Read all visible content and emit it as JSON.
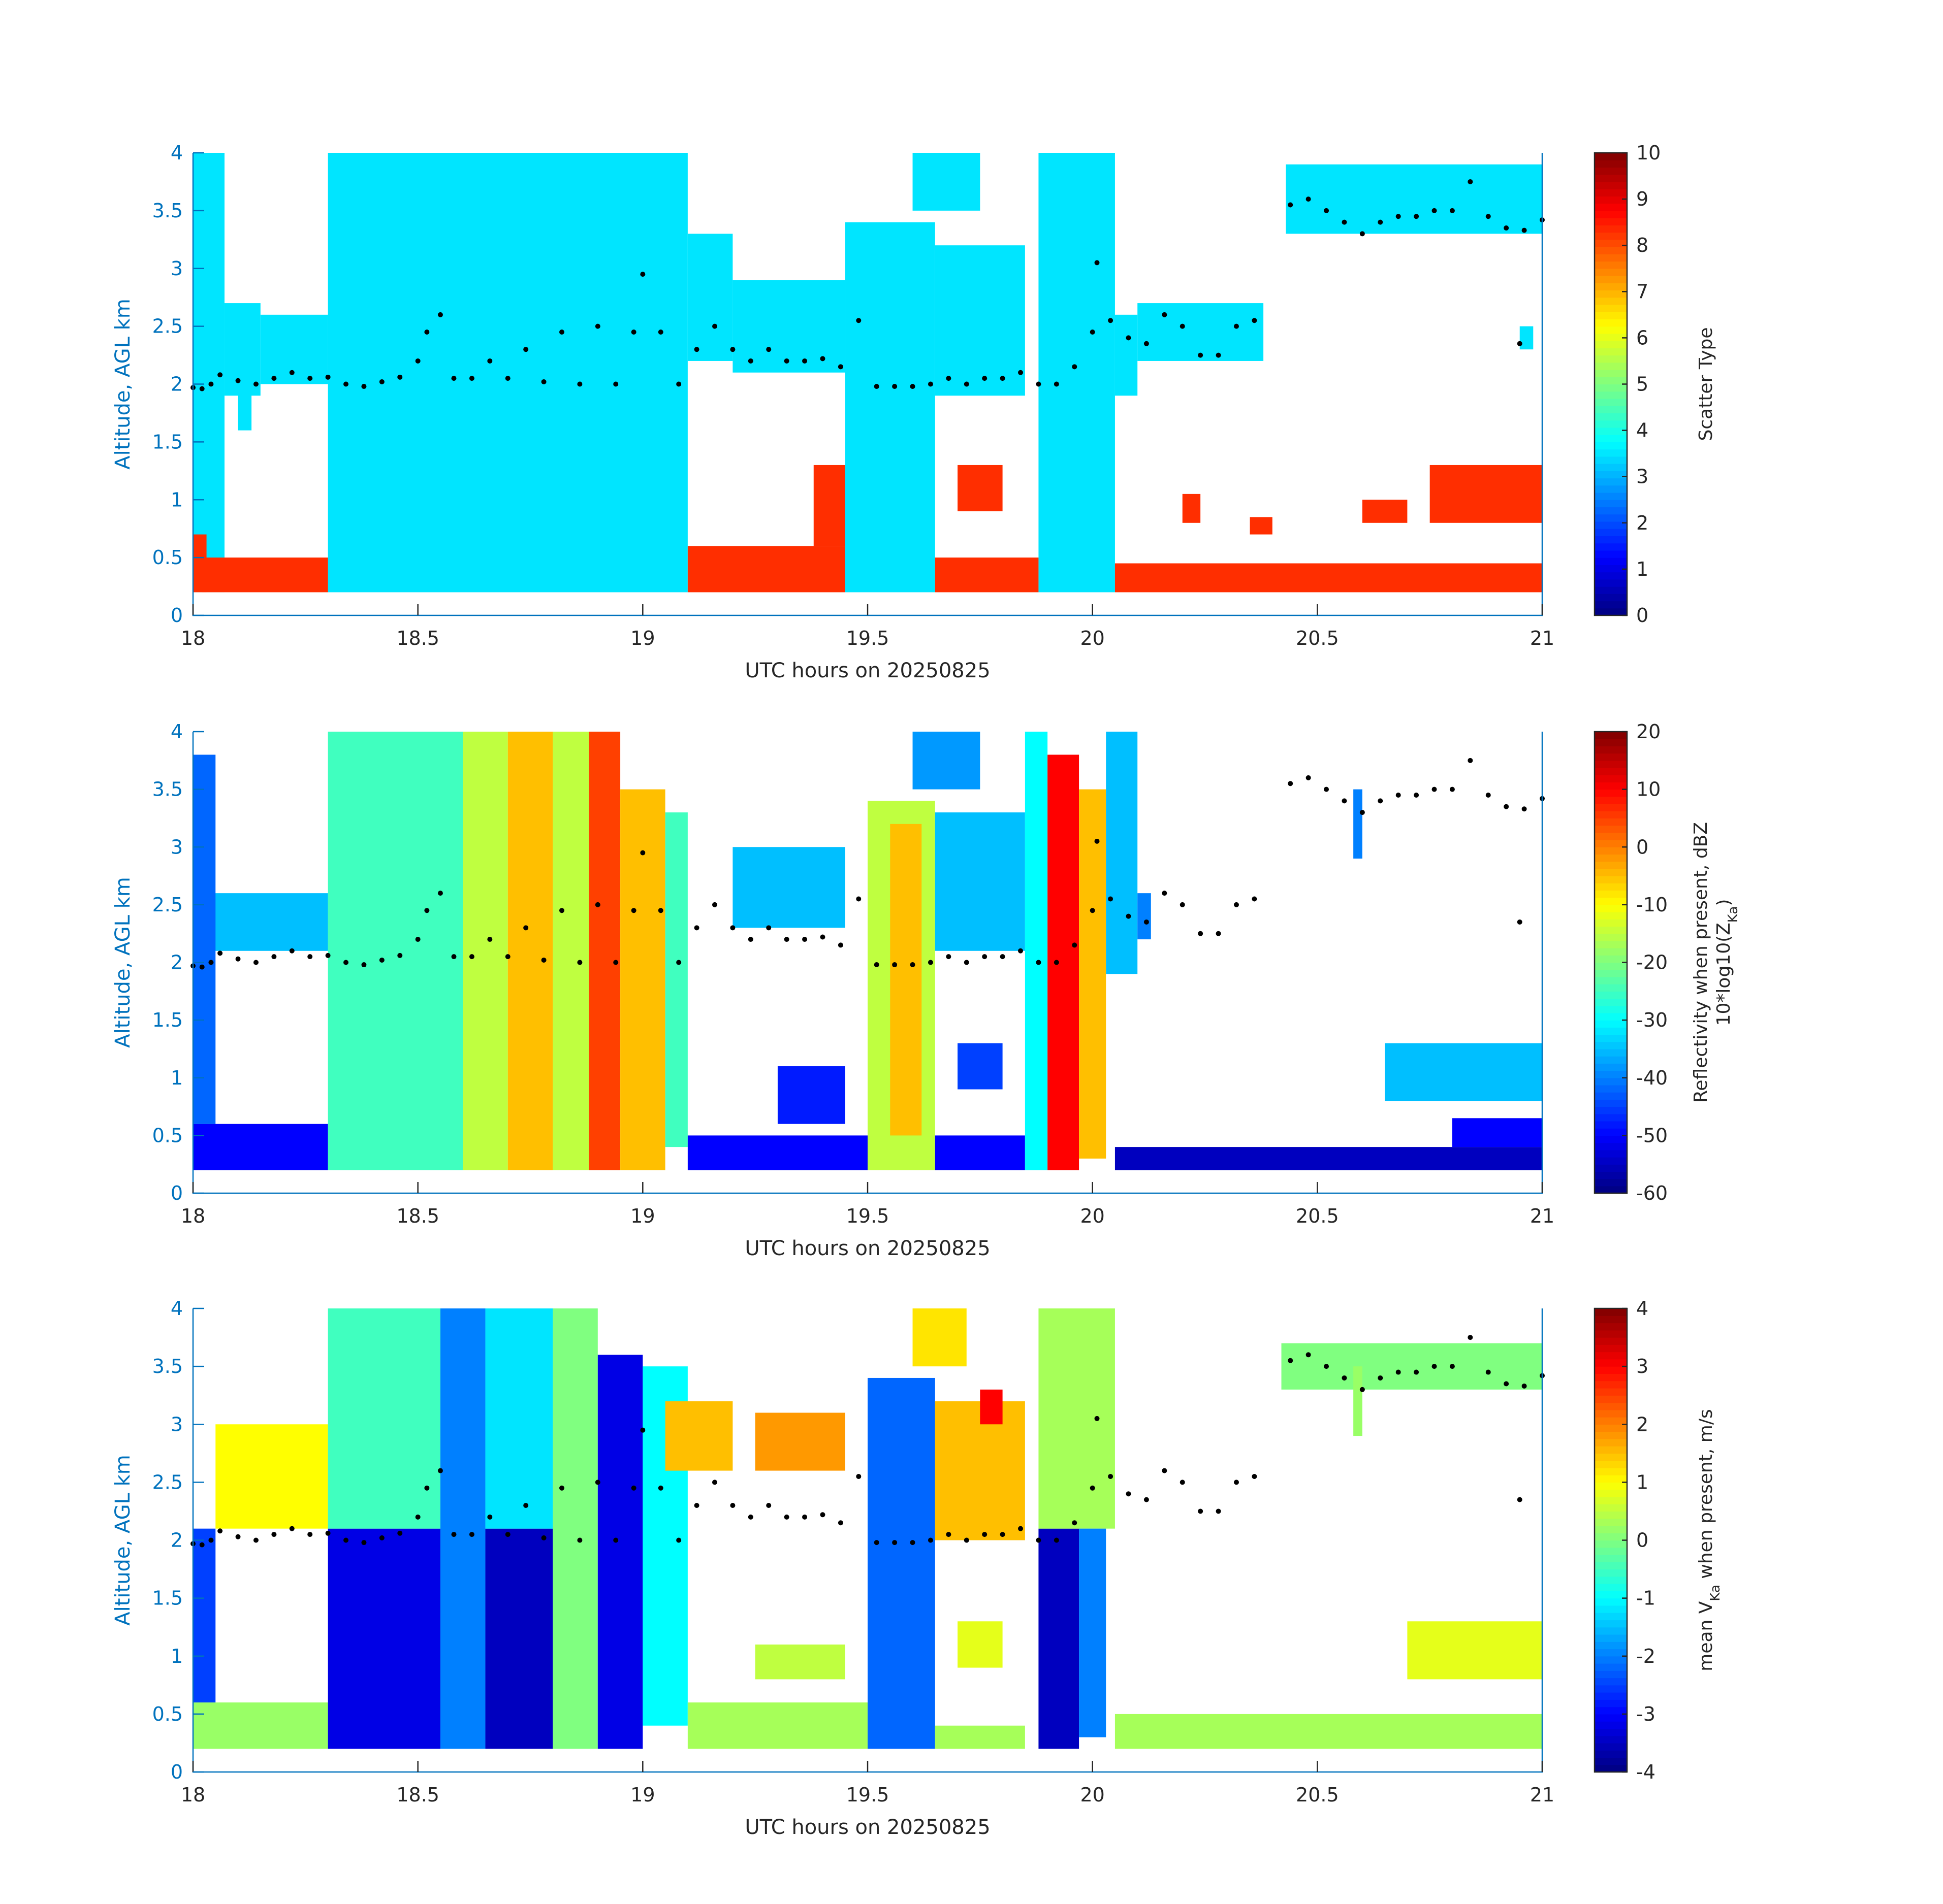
{
  "colors": {
    "axis_label": "#0072bd",
    "text": "#262626",
    "dots": "#000000",
    "colormap": "jet"
  },
  "chart_data": [
    {
      "type": "heatmap",
      "xlabel": "UTC hours on 20250825",
      "ylabel": "Altitude, AGL km",
      "xlim": [
        18,
        21
      ],
      "ylim": [
        0,
        4
      ],
      "xticks": [
        "18",
        "18.5",
        "19",
        "19.5",
        "20",
        "20.5",
        "21"
      ],
      "yticks": [
        "0",
        "0.5",
        "1",
        "1.5",
        "2",
        "2.5",
        "3",
        "3.5",
        "4"
      ],
      "colorbar": {
        "label": "Scatter Type",
        "label_sub": "",
        "label_line2": "",
        "clim": [
          0,
          10
        ],
        "ticks": [
          "0",
          "1",
          "2",
          "3",
          "4",
          "5",
          "6",
          "7",
          "8",
          "9",
          "10"
        ]
      },
      "regions_t0_t1_z0_z1_value": [
        [
          18.0,
          18.07,
          0.2,
          4.0,
          3.5
        ],
        [
          18.07,
          18.15,
          1.9,
          2.7,
          3.5
        ],
        [
          18.15,
          18.3,
          2.0,
          2.6,
          3.5
        ],
        [
          18.1,
          18.13,
          1.6,
          2.1,
          3.5
        ],
        [
          18.3,
          19.1,
          0.2,
          4.0,
          3.5
        ],
        [
          19.1,
          19.2,
          2.2,
          3.3,
          3.5
        ],
        [
          19.2,
          19.45,
          2.1,
          2.9,
          3.5
        ],
        [
          19.45,
          19.65,
          0.2,
          3.4,
          3.5
        ],
        [
          19.65,
          19.85,
          1.9,
          3.2,
          3.5
        ],
        [
          19.6,
          19.75,
          3.5,
          4.0,
          3.5
        ],
        [
          19.88,
          20.05,
          0.2,
          4.0,
          3.5
        ],
        [
          20.05,
          20.1,
          1.9,
          2.6,
          3.5
        ],
        [
          20.1,
          20.38,
          2.2,
          2.7,
          3.5
        ],
        [
          20.43,
          21.0,
          3.3,
          3.9,
          3.5
        ],
        [
          20.95,
          20.98,
          2.3,
          2.5,
          3.5
        ],
        [
          18.02,
          18.3,
          0.2,
          0.5,
          8.3
        ],
        [
          18.0,
          18.03,
          0.2,
          0.7,
          8.3
        ],
        [
          19.1,
          19.45,
          0.2,
          0.6,
          8.3
        ],
        [
          19.38,
          19.45,
          0.6,
          1.3,
          8.3
        ],
        [
          19.65,
          19.88,
          0.2,
          0.5,
          8.3
        ],
        [
          19.7,
          19.8,
          0.9,
          1.3,
          8.3
        ],
        [
          20.05,
          21.0,
          0.2,
          0.45,
          8.3
        ],
        [
          20.6,
          20.7,
          0.8,
          1.0,
          8.3
        ],
        [
          20.75,
          21.0,
          0.8,
          1.3,
          8.3
        ],
        [
          20.2,
          20.24,
          0.8,
          1.05,
          8.3
        ],
        [
          20.35,
          20.4,
          0.7,
          0.85,
          8.3
        ]
      ]
    },
    {
      "type": "heatmap",
      "xlabel": "UTC hours on 20250825",
      "ylabel": "Altitude, AGL km",
      "xlim": [
        18,
        21
      ],
      "ylim": [
        0,
        4
      ],
      "xticks": [
        "18",
        "18.5",
        "19",
        "19.5",
        "20",
        "20.5",
        "21"
      ],
      "yticks": [
        "0",
        "0.5",
        "1",
        "1.5",
        "2",
        "2.5",
        "3",
        "3.5",
        "4"
      ],
      "colorbar": {
        "label": "Reflectivity when present, dBZ",
        "label_line2": "10*log10(Z",
        "label_sub": "Ka",
        "label_end": ")",
        "clim": [
          -60,
          20
        ],
        "ticks": [
          "-60",
          "-50",
          "-40",
          "-30",
          "-20",
          "-10",
          "0",
          "10",
          "20"
        ]
      },
      "regions_t0_t1_z0_z1_value": [
        [
          18.0,
          18.3,
          0.2,
          0.6,
          -50
        ],
        [
          18.0,
          18.3,
          2.1,
          2.6,
          -35
        ],
        [
          18.0,
          18.05,
          0.6,
          3.8,
          -42
        ],
        [
          18.3,
          18.6,
          0.2,
          4.0,
          -25
        ],
        [
          18.6,
          18.7,
          0.2,
          4.0,
          -15
        ],
        [
          18.7,
          18.8,
          0.2,
          4.0,
          -5
        ],
        [
          18.8,
          18.88,
          0.2,
          4.0,
          -15
        ],
        [
          18.88,
          18.95,
          0.2,
          4.0,
          5
        ],
        [
          18.95,
          19.05,
          0.2,
          3.5,
          -5
        ],
        [
          19.05,
          19.1,
          0.4,
          3.3,
          -25
        ],
        [
          19.1,
          19.5,
          0.2,
          0.5,
          -50
        ],
        [
          19.2,
          19.45,
          2.3,
          3.0,
          -35
        ],
        [
          19.3,
          19.45,
          0.6,
          1.1,
          -48
        ],
        [
          19.5,
          19.65,
          0.2,
          3.4,
          -15
        ],
        [
          19.55,
          19.62,
          0.5,
          3.2,
          -5
        ],
        [
          19.65,
          19.85,
          0.2,
          0.5,
          -50
        ],
        [
          19.65,
          19.85,
          2.1,
          3.3,
          -35
        ],
        [
          19.6,
          19.75,
          3.5,
          4.0,
          -38
        ],
        [
          19.7,
          19.8,
          0.9,
          1.3,
          -45
        ],
        [
          19.85,
          19.9,
          0.2,
          4.0,
          -30
        ],
        [
          19.9,
          19.97,
          0.2,
          3.8,
          10
        ],
        [
          19.97,
          20.03,
          0.3,
          3.5,
          -5
        ],
        [
          20.03,
          20.1,
          1.9,
          4.0,
          -35
        ],
        [
          20.05,
          21.0,
          0.2,
          0.4,
          -55
        ],
        [
          20.1,
          20.13,
          2.2,
          2.6,
          -40
        ],
        [
          20.58,
          20.6,
          2.9,
          3.5,
          -40
        ],
        [
          20.65,
          21.0,
          0.8,
          1.3,
          -35
        ],
        [
          20.8,
          21.0,
          0.4,
          0.65,
          -50
        ]
      ]
    },
    {
      "type": "heatmap",
      "xlabel": "UTC hours on 20250825",
      "ylabel": "Altitude, AGL km",
      "xlim": [
        18,
        21
      ],
      "ylim": [
        0,
        4
      ],
      "xticks": [
        "18",
        "18.5",
        "19",
        "19.5",
        "20",
        "20.5",
        "21"
      ],
      "yticks": [
        "0",
        "0.5",
        "1",
        "1.5",
        "2",
        "2.5",
        "3",
        "3.5",
        "4"
      ],
      "colorbar": {
        "label": "mean V",
        "label_sub": "Ka",
        "label_end": " when present, m/s",
        "label_line2": "",
        "clim": [
          -4,
          4
        ],
        "ticks": [
          "-4",
          "-3",
          "-2",
          "-1",
          "0",
          "1",
          "2",
          "3",
          "4"
        ]
      },
      "regions_t0_t1_z0_z1_value": [
        [
          18.0,
          18.3,
          0.2,
          0.6,
          0.2
        ],
        [
          18.0,
          18.05,
          0.6,
          2.1,
          -2.5
        ],
        [
          18.05,
          18.3,
          2.1,
          3.0,
          1.0
        ],
        [
          18.3,
          18.55,
          0.2,
          2.1,
          -3.2
        ],
        [
          18.3,
          18.55,
          2.1,
          4.0,
          -0.5
        ],
        [
          18.55,
          18.65,
          0.2,
          4.0,
          -2
        ],
        [
          18.65,
          18.8,
          0.2,
          2.1,
          -3.5
        ],
        [
          18.65,
          18.8,
          2.1,
          4.0,
          -1.2
        ],
        [
          18.8,
          18.9,
          0.2,
          4.0,
          0
        ],
        [
          18.9,
          19.0,
          0.2,
          3.6,
          -3.2
        ],
        [
          19.0,
          19.1,
          0.4,
          3.5,
          -1
        ],
        [
          19.05,
          19.2,
          2.6,
          3.2,
          1.5
        ],
        [
          19.1,
          19.5,
          0.2,
          0.6,
          0.3
        ],
        [
          19.25,
          19.45,
          2.6,
          3.1,
          1.8
        ],
        [
          19.25,
          19.45,
          0.8,
          1.1,
          0.5
        ],
        [
          19.5,
          19.65,
          0.2,
          3.4,
          -2.2
        ],
        [
          19.65,
          19.85,
          0.2,
          0.4,
          0.3
        ],
        [
          19.65,
          19.85,
          2.0,
          3.2,
          1.5
        ],
        [
          19.75,
          19.8,
          3.0,
          3.3,
          3
        ],
        [
          19.7,
          19.8,
          0.9,
          1.3,
          0.8
        ],
        [
          19.6,
          19.72,
          3.5,
          4.0,
          1.2
        ],
        [
          19.88,
          19.97,
          0.2,
          2.1,
          -3.5
        ],
        [
          19.88,
          20.05,
          2.1,
          4.0,
          0.3
        ],
        [
          19.97,
          20.03,
          0.3,
          2.1,
          -2
        ],
        [
          20.05,
          21.0,
          0.2,
          0.5,
          0.3
        ],
        [
          20.42,
          21.0,
          3.3,
          3.7,
          0
        ],
        [
          20.58,
          20.6,
          2.9,
          3.5,
          0.2
        ],
        [
          20.7,
          21.0,
          0.8,
          1.3,
          0.8
        ]
      ]
    }
  ],
  "dots_series": {
    "x": [
      18.0,
      18.02,
      18.04,
      18.06,
      18.1,
      18.14,
      18.18,
      18.22,
      18.26,
      18.3,
      18.34,
      18.38,
      18.42,
      18.46,
      18.5,
      18.52,
      18.55,
      18.58,
      18.62,
      18.66,
      18.7,
      18.74,
      18.78,
      18.82,
      18.86,
      18.9,
      18.94,
      18.98,
      19.0,
      19.04,
      19.08,
      19.12,
      19.16,
      19.2,
      19.24,
      19.28,
      19.32,
      19.36,
      19.4,
      19.44,
      19.48,
      19.52,
      19.56,
      19.6,
      19.64,
      19.68,
      19.72,
      19.76,
      19.8,
      19.84,
      19.88,
      19.92,
      19.96,
      20.0,
      20.01,
      20.04,
      20.08,
      20.12,
      20.16,
      20.2,
      20.24,
      20.28,
      20.32,
      20.36,
      20.44,
      20.48,
      20.52,
      20.56,
      20.6,
      20.64,
      20.68,
      20.72,
      20.76,
      20.8,
      20.84,
      20.88,
      20.92,
      20.96,
      21.0,
      20.95
    ],
    "y": [
      1.97,
      1.96,
      2.0,
      2.08,
      2.03,
      2.0,
      2.05,
      2.1,
      2.05,
      2.06,
      2.0,
      1.98,
      2.02,
      2.06,
      2.2,
      2.45,
      2.6,
      2.05,
      2.05,
      2.2,
      2.05,
      2.3,
      2.02,
      2.45,
      2.0,
      2.5,
      2.0,
      2.45,
      2.95,
      2.45,
      2.0,
      2.3,
      2.5,
      2.3,
      2.2,
      2.3,
      2.2,
      2.2,
      2.22,
      2.15,
      2.55,
      1.98,
      1.98,
      1.98,
      2.0,
      2.05,
      2.0,
      2.05,
      2.05,
      2.1,
      2.0,
      2.0,
      2.15,
      2.45,
      3.05,
      2.55,
      2.4,
      2.35,
      2.6,
      2.5,
      2.25,
      2.25,
      2.5,
      2.55,
      3.55,
      3.6,
      3.5,
      3.4,
      3.3,
      3.4,
      3.45,
      3.45,
      3.5,
      3.5,
      3.75,
      3.45,
      3.35,
      3.33,
      3.42,
      2.35
    ]
  }
}
